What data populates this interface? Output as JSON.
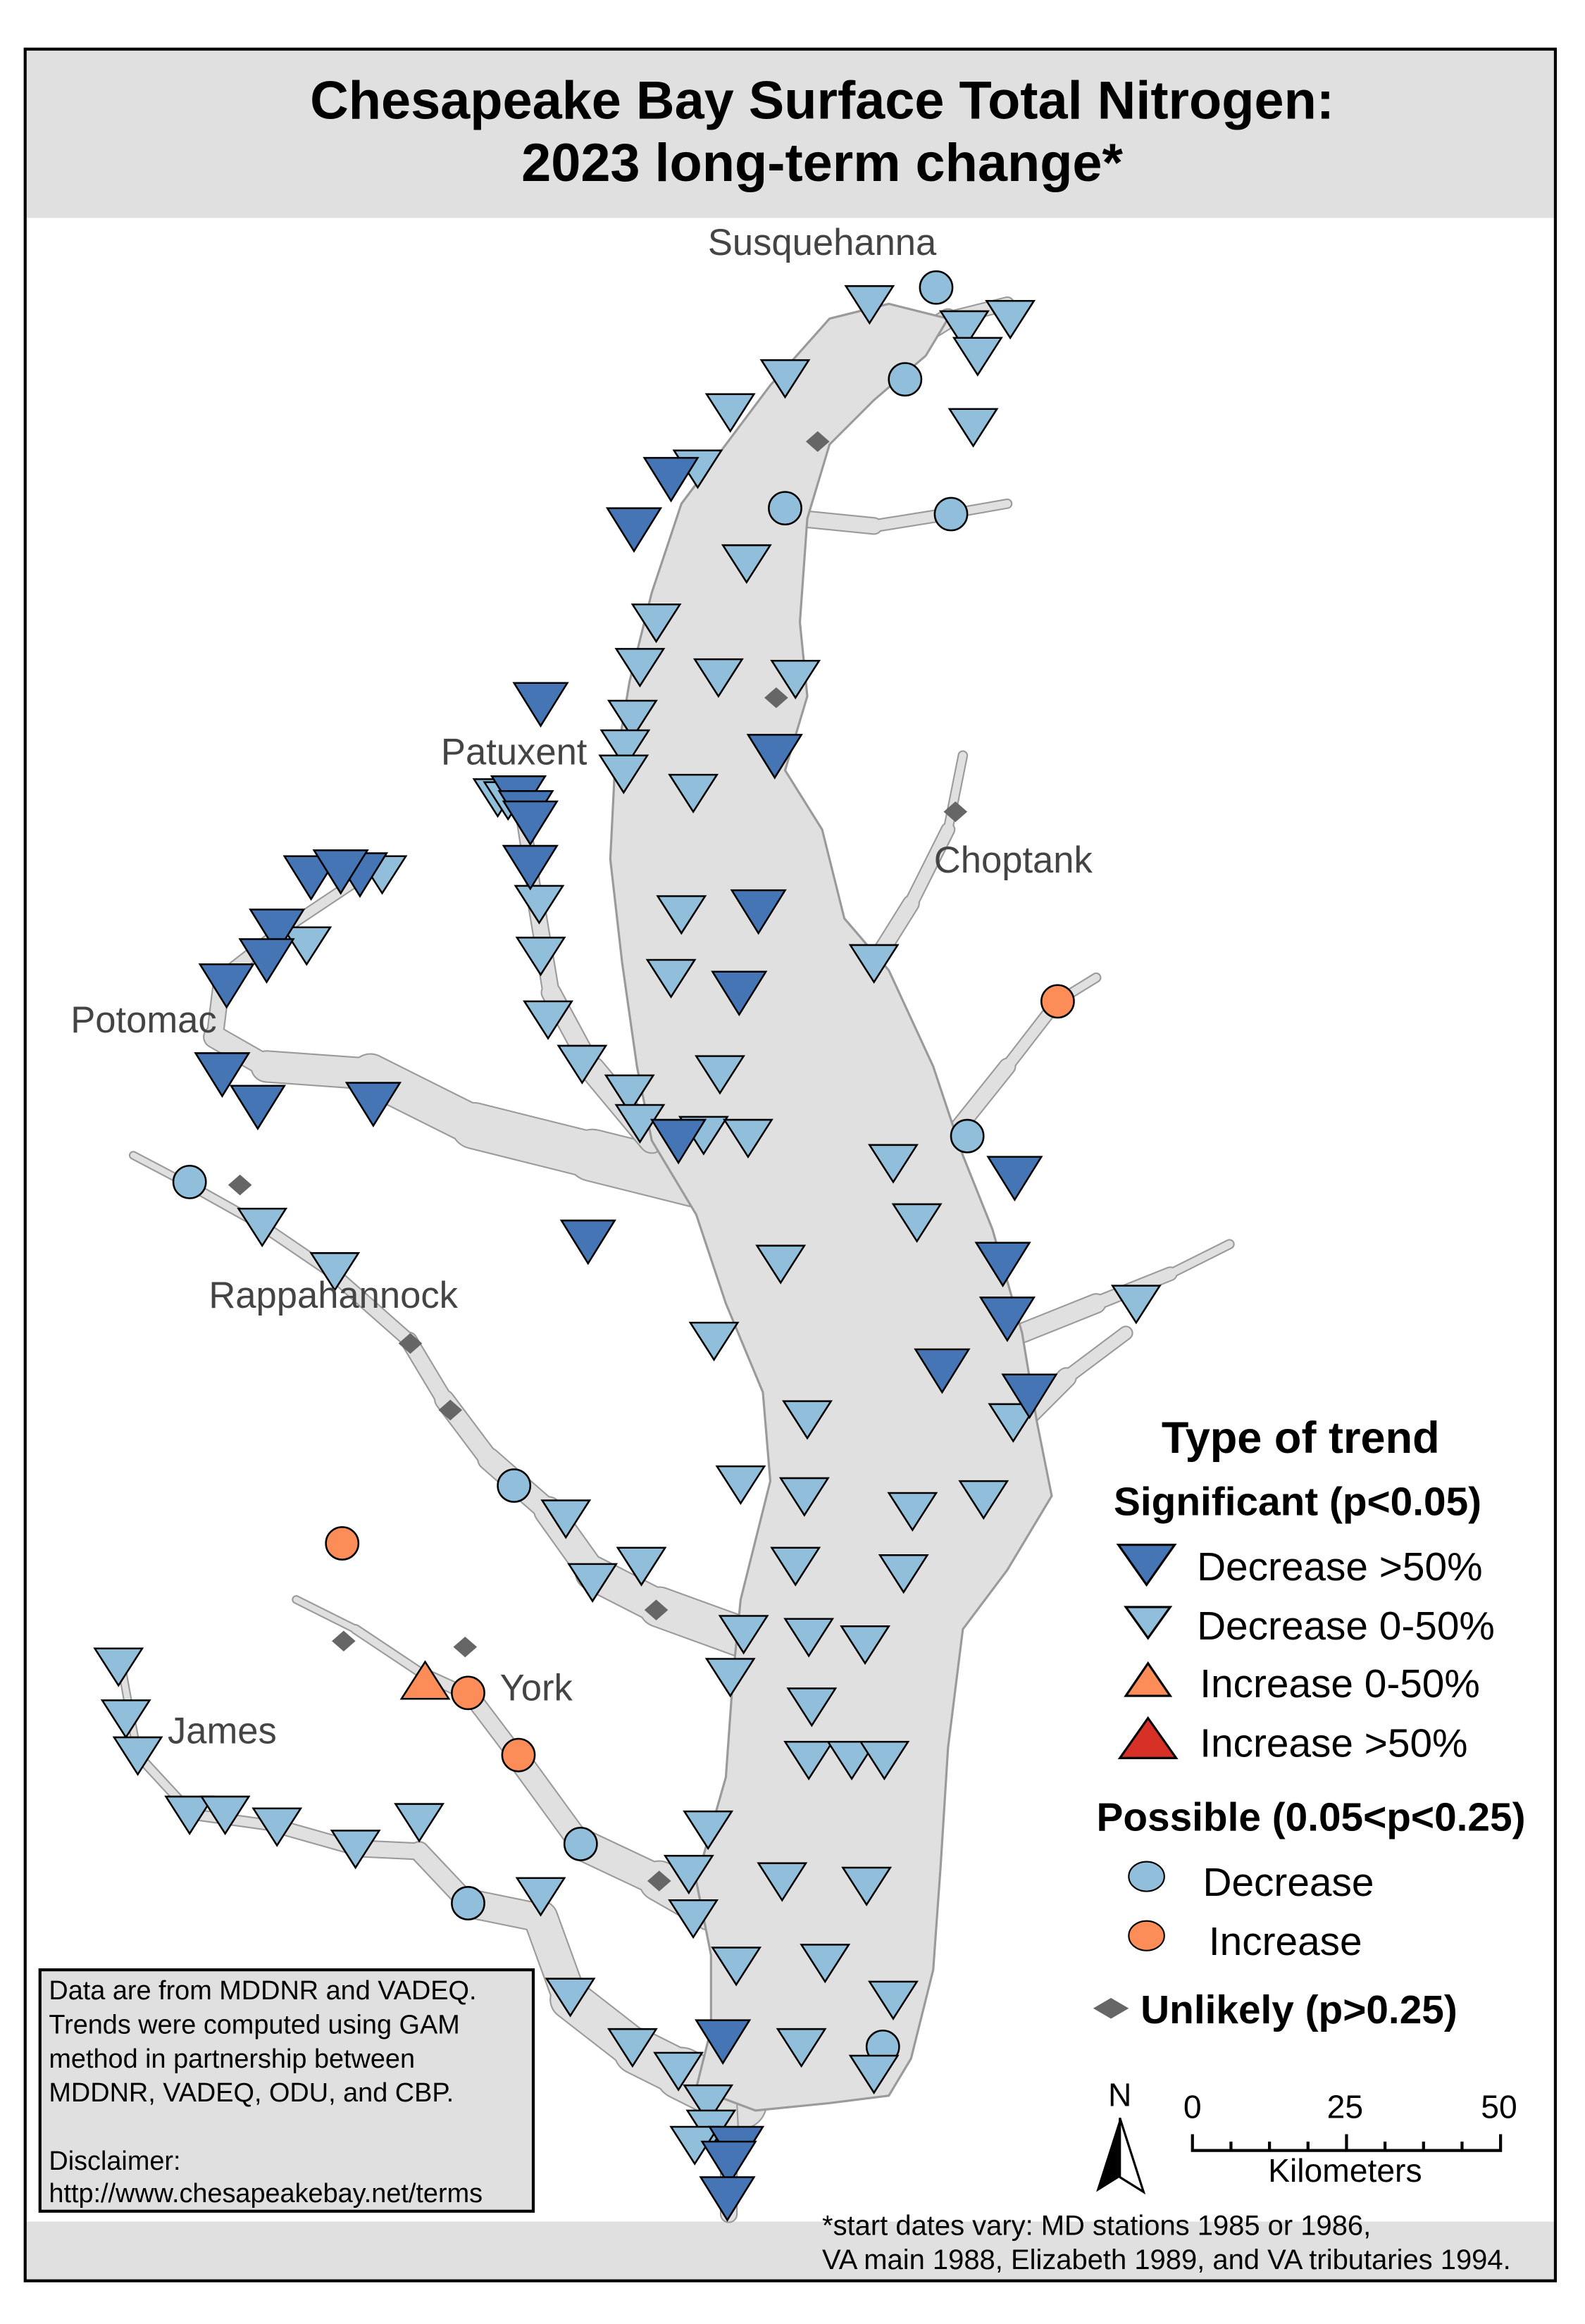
{
  "title": {
    "line1": "Chesapeake Bay Surface Total Nitrogen:",
    "line2": "2023 long-term change*"
  },
  "rivers": {
    "susquehanna": "Susquehanna",
    "patuxent": "Patuxent",
    "choptank": "Choptank",
    "potomac": "Potomac",
    "rappahannock": "Rappahannock",
    "york": "York",
    "james": "James"
  },
  "legend": {
    "title": "Type of trend",
    "significant_heading": "Significant (p<0.05)",
    "significant_items": [
      {
        "label": "Decrease >50%",
        "color": "#4575b4",
        "symbol": "triangle-down-large"
      },
      {
        "label": "Decrease 0-50%",
        "color": "#91bfdb",
        "symbol": "triangle-down"
      },
      {
        "label": "Increase 0-50%",
        "color": "#fc8d59",
        "symbol": "triangle-up"
      },
      {
        "label": "Increase >50%",
        "color": "#d73027",
        "symbol": "triangle-up-large"
      }
    ],
    "possible_heading": "Possible (0.05<p<0.25)",
    "possible_items": [
      {
        "label": "Decrease",
        "color": "#91bfdb",
        "symbol": "circle"
      },
      {
        "label": "Increase",
        "color": "#fc8d59",
        "symbol": "circle"
      }
    ],
    "unlikely_label": "Unlikely (p>0.25)",
    "unlikely_color": "#666666"
  },
  "north_arrow": "N",
  "scale_bar": {
    "ticks": [
      "0",
      "25",
      "50"
    ],
    "unit": "Kilometers"
  },
  "data_note": {
    "lines": [
      "Data are from MDDNR and VADEQ.",
      "Trends were computed using GAM",
      "method in partnership between",
      "MDDNR, VADEQ, ODU, and CBP.",
      "",
      "Disclaimer:",
      "http://www.chesapeakebay.net/terms"
    ]
  },
  "footnote": {
    "line1": "*start dates vary: MD stations 1985 or 1986,",
    "line2": "VA main 1988, Elizabeth 1989, and VA tributaries 1994."
  },
  "colors": {
    "water": "#e0e0e0",
    "shoreline": "#9a9a9a",
    "band": "#e0e0e0"
  }
}
